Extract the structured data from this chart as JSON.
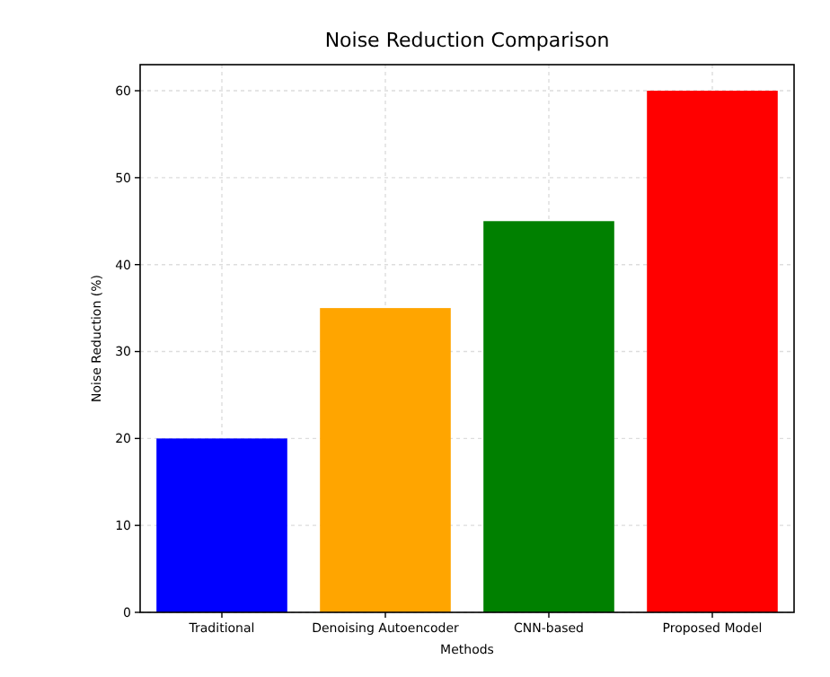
{
  "chart_data": {
    "type": "bar",
    "title": "Noise Reduction Comparison",
    "xlabel": "Methods",
    "ylabel": "Noise Reduction (%)",
    "categories": [
      "Traditional",
      "Denoising Autoencoder",
      "CNN-based",
      "Proposed Model"
    ],
    "values": [
      20,
      35,
      45,
      60
    ],
    "colors": [
      "#0000ff",
      "#ffa500",
      "#008000",
      "#ff0000"
    ],
    "ylim": [
      0,
      63
    ],
    "yticks": [
      0,
      10,
      20,
      30,
      40,
      50,
      60
    ],
    "grid": true
  }
}
